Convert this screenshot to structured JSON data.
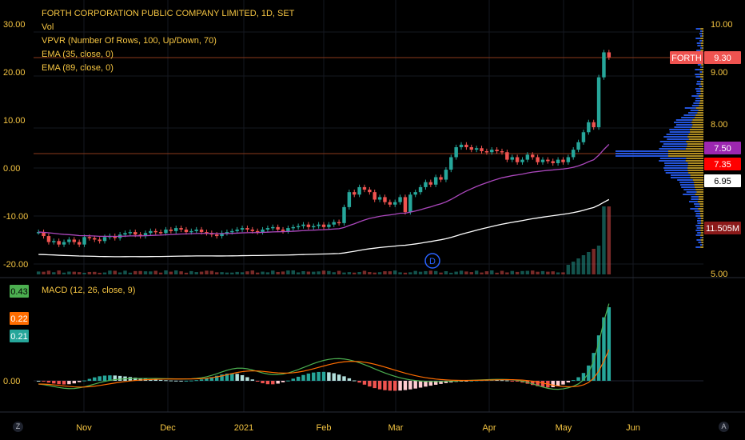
{
  "header": {
    "title": "FORTH CORPORATION PUBLIC COMPANY LIMITED, 1D, SET",
    "indicators": [
      "Vol",
      "VPVR (Number Of Rows, 100, Up/Down, 70)",
      "EMA (35, close, 0)",
      "EMA (89, close, 0)"
    ]
  },
  "macd_label": "MACD (12, 26, close, 9)",
  "corner_left": "Z",
  "corner_right": "A",
  "colors": {
    "up": "#26a69a",
    "down": "#ef5350",
    "ema35": "#ab47bc",
    "ema89": "#ffffff",
    "title": "#f5c542",
    "macd": "#4caf50",
    "signal": "#ff6d00",
    "vpvr_up": "#2962ff",
    "vpvr_down": "#c9a227"
  },
  "chart_data": [
    {
      "type": "candlestick",
      "title": "FORTH CORPORATION PUBLIC COMPANY LIMITED, 1D, SET",
      "x_ticks": [
        "Nov",
        "Dec",
        "2021",
        "Feb",
        "Mar",
        "Apr",
        "May",
        "Jun"
      ],
      "left_axis_ticks": [
        "30.00",
        "20.00",
        "10.00",
        "0.00",
        "-10.00",
        "-20.00"
      ],
      "right_axis_ticks": [
        "10.00",
        "9.00",
        "8.00",
        "6.95",
        "5.00"
      ],
      "price_range": [
        5.0,
        10.0
      ],
      "closes": [
        5.8,
        5.72,
        5.6,
        5.62,
        5.55,
        5.6,
        5.65,
        5.6,
        5.55,
        5.7,
        5.68,
        5.65,
        5.62,
        5.7,
        5.72,
        5.68,
        5.75,
        5.78,
        5.8,
        5.75,
        5.72,
        5.78,
        5.82,
        5.8,
        5.78,
        5.85,
        5.82,
        5.88,
        5.85,
        5.8,
        5.82,
        5.85,
        5.8,
        5.78,
        5.75,
        5.72,
        5.78,
        5.8,
        5.82,
        5.85,
        5.88,
        5.85,
        5.82,
        5.8,
        5.85,
        5.88,
        5.9,
        5.85,
        5.82,
        5.88,
        5.9,
        5.92,
        5.95,
        5.9,
        5.92,
        5.95,
        5.9,
        5.95,
        6.0,
        5.98,
        6.3,
        6.6,
        6.55,
        6.7,
        6.65,
        6.6,
        6.45,
        6.5,
        6.4,
        6.35,
        6.4,
        6.5,
        6.2,
        6.55,
        6.6,
        6.7,
        6.8,
        6.75,
        6.9,
        6.85,
        7.05,
        7.3,
        7.5,
        7.55,
        7.5,
        7.45,
        7.48,
        7.42,
        7.4,
        7.45,
        7.42,
        7.4,
        7.25,
        7.3,
        7.2,
        7.25,
        7.35,
        7.3,
        7.2,
        7.25,
        7.22,
        7.18,
        7.25,
        7.2,
        7.3,
        7.45,
        7.6,
        7.8,
        8.0,
        7.9,
        8.9,
        9.4,
        9.3
      ],
      "volume_spikes_label": "11.505M",
      "markers": {
        "current_price": "9.30",
        "ema35_value": "7.50",
        "level_value": "7.35",
        "ema89_value": "6.95",
        "ticker": "FORTH",
        "dividend": "D"
      }
    },
    {
      "type": "macd",
      "title": "MACD (12, 26, close, 9)",
      "y_ticks": [
        "0.00"
      ],
      "values": {
        "macd": "0.43",
        "signal": "0.22",
        "histogram": "0.21"
      }
    }
  ]
}
